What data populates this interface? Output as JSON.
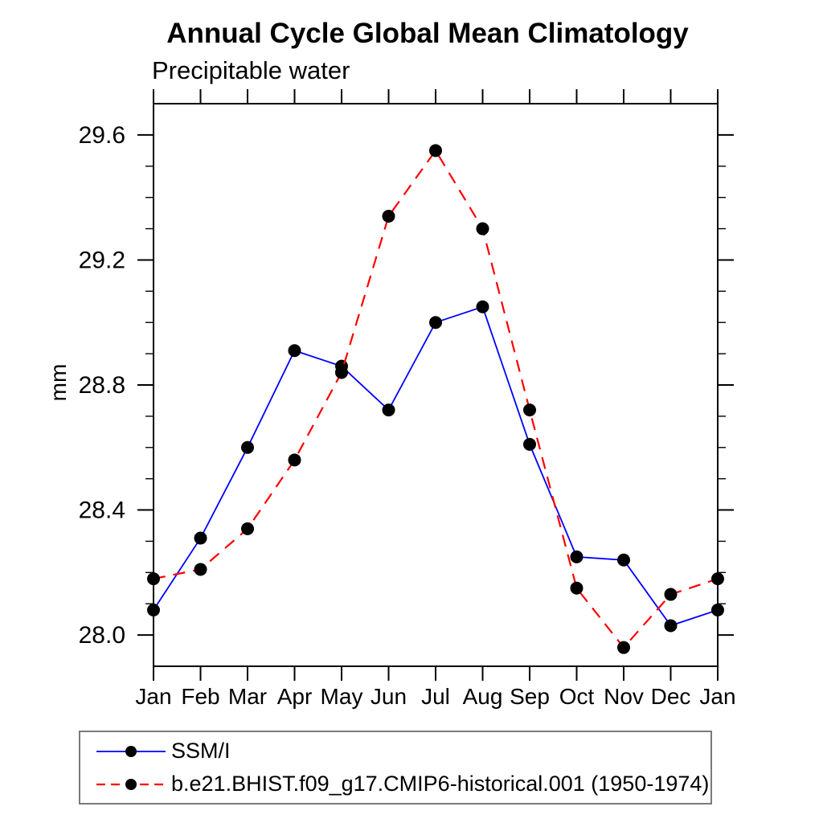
{
  "chart_data": {
    "type": "line",
    "title": "Annual Cycle Global Mean Climatology",
    "subtitle": "Precipitable water",
    "ylabel": "mm",
    "x_categories": [
      "Jan",
      "Feb",
      "Mar",
      "Apr",
      "May",
      "Jun",
      "Jul",
      "Aug",
      "Sep",
      "Oct",
      "Nov",
      "Dec",
      "Jan"
    ],
    "ylim": [
      27.9,
      29.7
    ],
    "y_ticks_major": [
      28.0,
      28.4,
      28.8,
      29.2,
      29.6
    ],
    "y_tick_labels": [
      "28.0",
      "28.4",
      "28.8",
      "29.2",
      "29.6"
    ],
    "y_minor_step": 0.1,
    "x_minor_ticks": false,
    "grid": false,
    "axis_color": "#000000",
    "background_color": "#ffffff",
    "legend_position": "bottom-left",
    "legend_border_color": "#7a7a7a",
    "series": [
      {
        "name": "SSM/I",
        "color": "#0000ff",
        "line_style": "solid",
        "marker": "filled-circle",
        "marker_color": "#000000",
        "values": [
          28.08,
          28.31,
          28.6,
          28.91,
          28.86,
          28.72,
          29.0,
          29.05,
          28.61,
          28.25,
          28.24,
          28.03,
          28.08
        ]
      },
      {
        "name": "b.e21.BHIST.f09_g17.CMIP6-historical.001 (1950-1974)",
        "color": "#ff0000",
        "line_style": "dashed",
        "marker": "filled-circle",
        "marker_color": "#000000",
        "values": [
          28.18,
          28.21,
          28.34,
          28.56,
          28.84,
          29.34,
          29.55,
          29.3,
          28.72,
          28.15,
          27.96,
          28.13,
          28.18
        ]
      }
    ]
  }
}
